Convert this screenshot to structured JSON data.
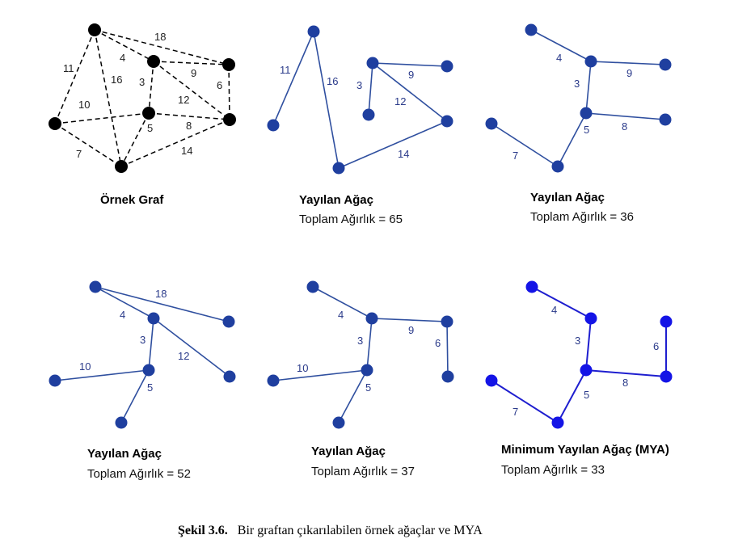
{
  "colors": {
    "example_node": "#000000",
    "tree_node": "#1f3f9f",
    "tree_edge": "#2f4f9f",
    "mst_node": "#1414e6",
    "mst_edge": "#1e1ecf",
    "label_dark": "#222222",
    "label_blue": "#2a3a8a"
  },
  "panels": [
    {
      "id": "example-graph",
      "kind": "example",
      "title": "Örnek Graf",
      "subtitle": "",
      "edge_weights": [
        "11",
        "18",
        "4",
        "16",
        "9",
        "3",
        "6",
        "10",
        "12",
        "5",
        "8",
        "7",
        "14"
      ]
    },
    {
      "id": "tree-1",
      "kind": "tree",
      "title": "Yayılan Ağaç",
      "subtitle": "Toplam Ağırlık = 65",
      "edge_weights": [
        "11",
        "16",
        "3",
        "9",
        "12",
        "14"
      ]
    },
    {
      "id": "tree-2",
      "kind": "tree",
      "title": "Yayılan Ağaç",
      "subtitle": "Toplam Ağırlık = 36",
      "edge_weights": [
        "4",
        "9",
        "3",
        "8",
        "5",
        "7"
      ]
    },
    {
      "id": "tree-3",
      "kind": "tree",
      "title": "Yayılan Ağaç",
      "subtitle": "Toplam Ağırlık = 52",
      "edge_weights": [
        "18",
        "4",
        "3",
        "12",
        "10",
        "5"
      ]
    },
    {
      "id": "tree-4",
      "kind": "tree",
      "title": "Yayılan Ağaç",
      "subtitle": "Toplam Ağırlık = 37",
      "edge_weights": [
        "4",
        "9",
        "3",
        "6",
        "10",
        "5"
      ]
    },
    {
      "id": "mst",
      "kind": "mst",
      "title": "Minimum Yayılan Ağaç (MYA)",
      "subtitle": "Toplam Ağırlık = 33",
      "edge_weights": [
        "4",
        "3",
        "6",
        "8",
        "5",
        "7"
      ]
    }
  ],
  "caption": {
    "label": "Şekil 3.6.",
    "text": "Bir graftan çıkarılabilen örnek ağaçlar ve MYA"
  }
}
